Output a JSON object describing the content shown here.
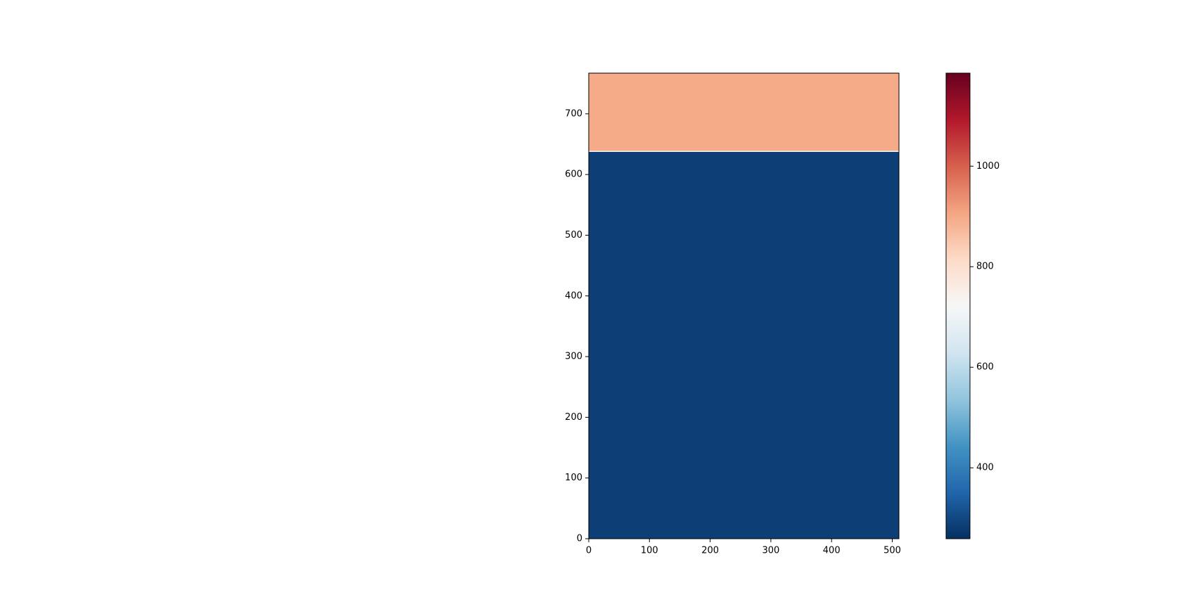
{
  "chart_data": {
    "type": "heatmap",
    "xlim": [
      0,
      511
    ],
    "ylim": [
      0,
      767
    ],
    "xticks": [
      0,
      100,
      200,
      300,
      400,
      500
    ],
    "yticks": [
      0,
      100,
      200,
      300,
      400,
      500,
      600,
      700
    ],
    "rows": [
      {
        "ylim": [
          0,
          637
        ],
        "value": 285
      },
      {
        "ylim": [
          637,
          639
        ],
        "value": 722
      },
      {
        "ylim": [
          639,
          767
        ],
        "value": 899
      }
    ],
    "colormap": "RdBu_r",
    "clim": [
      259,
      1185
    ],
    "cticks": [
      400,
      600,
      800,
      1000
    ]
  }
}
